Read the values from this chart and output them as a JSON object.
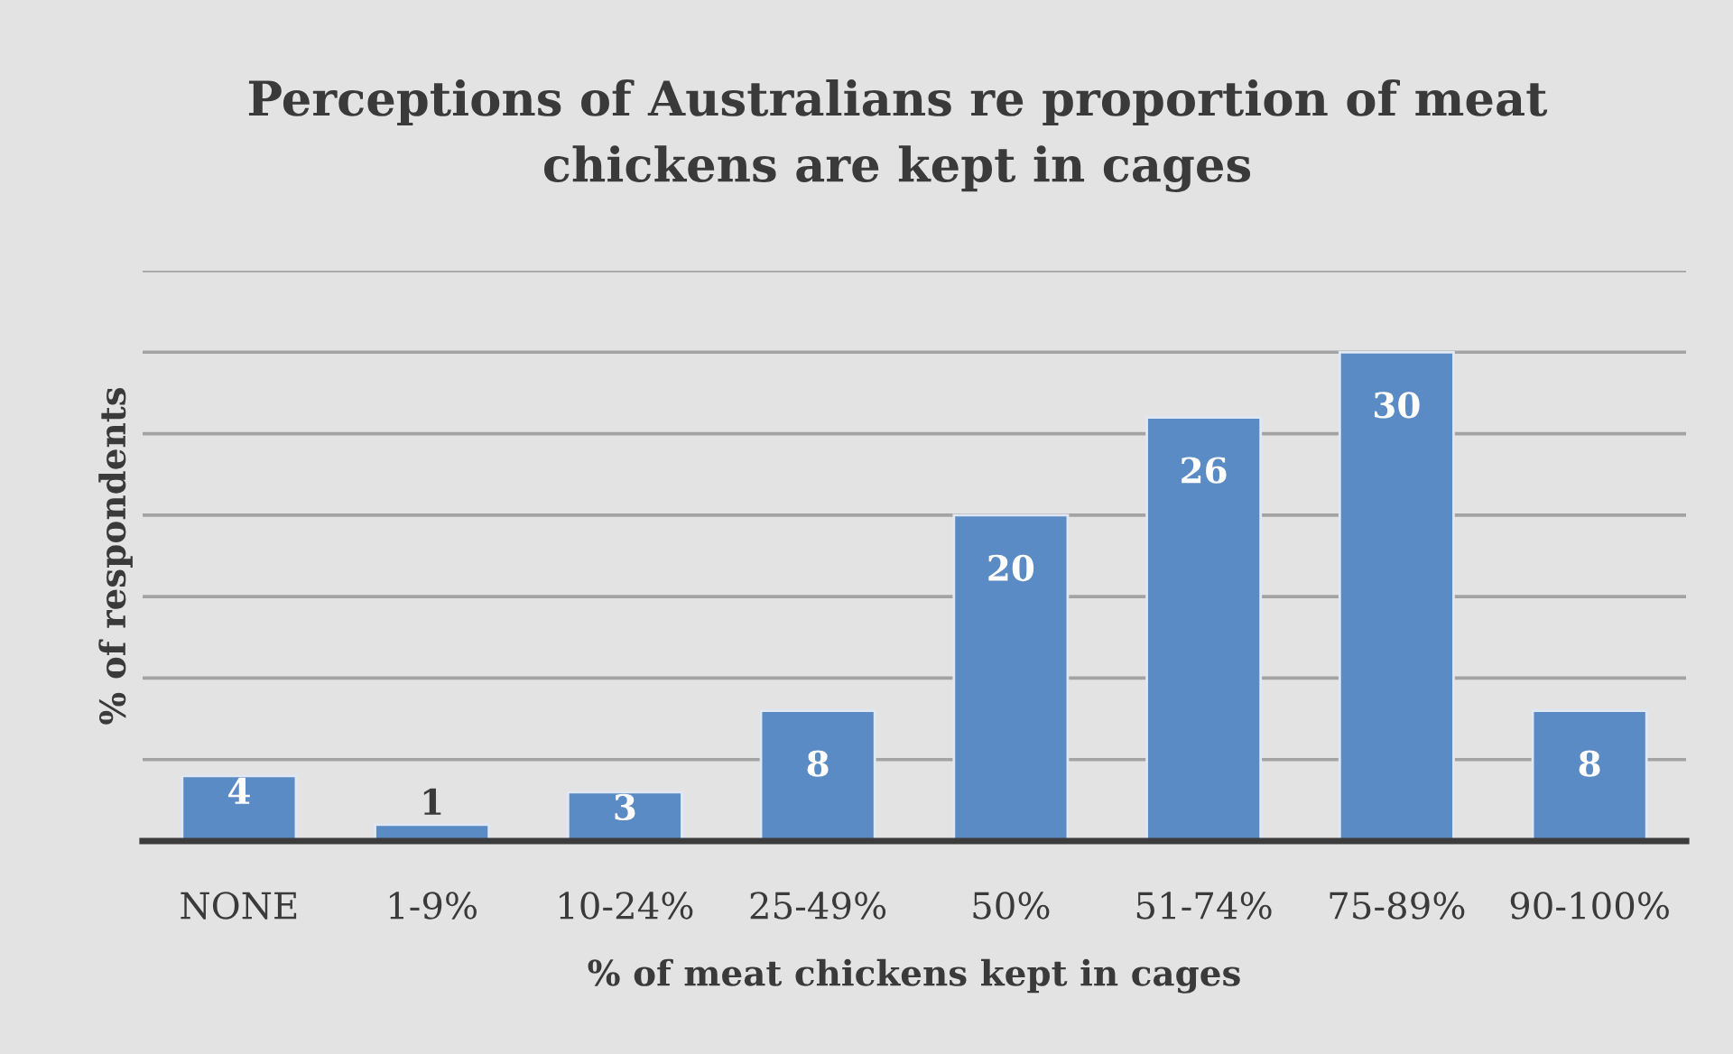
{
  "chart_data": {
    "type": "bar",
    "title": "Perceptions of Australians re proportion of meat chickens are kept in cages",
    "xlabel": "% of meat chickens kept in cages",
    "ylabel": "% of respondents",
    "categories": [
      "NONE",
      "1-9%",
      "10-24%",
      "25-49%",
      "50%",
      "51-74%",
      "75-89%",
      "90-100%"
    ],
    "values": [
      4,
      1,
      3,
      8,
      20,
      26,
      30,
      8
    ],
    "color": "#5b8bc5",
    "ylim": [
      0,
      35
    ],
    "yticks": [
      {
        "value": 0,
        "label": null
      },
      {
        "value": 5,
        "label": null
      },
      {
        "value": 10,
        "label": null
      },
      {
        "value": 15,
        "label": null
      },
      {
        "value": 20,
        "label": null
      },
      {
        "value": 25,
        "label": null
      },
      {
        "value": 30,
        "label": null
      },
      {
        "value": 35,
        "label": null
      }
    ],
    "grid": "y",
    "data_labels": true,
    "tick_labels": "x"
  }
}
